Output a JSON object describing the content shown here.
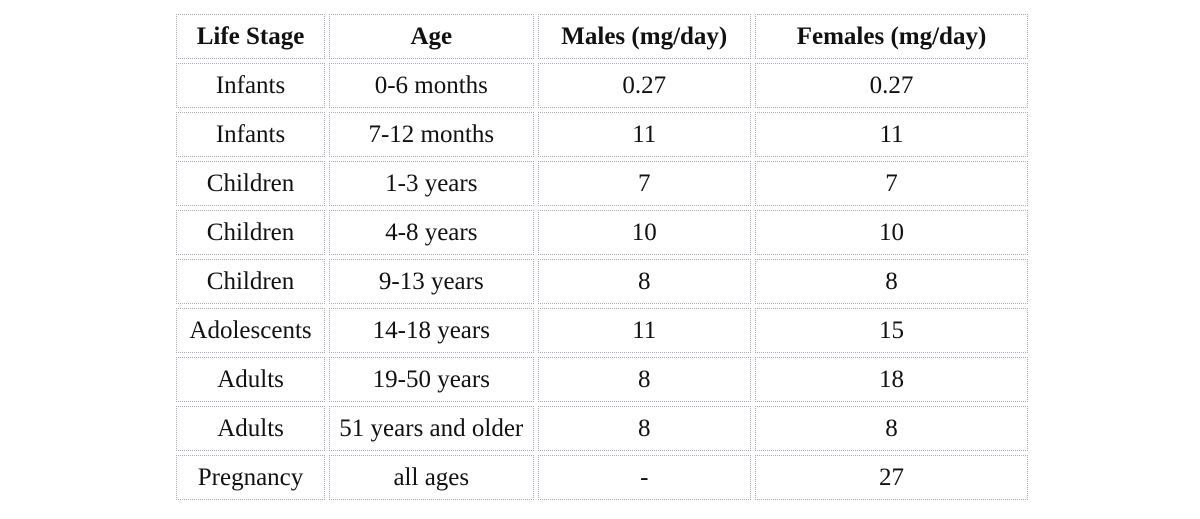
{
  "table": {
    "headers": [
      "Life Stage",
      "Age",
      "Males (mg/day)",
      "Females (mg/day)"
    ],
    "rows": [
      [
        "Infants",
        "0-6 months",
        "0.27",
        "0.27"
      ],
      [
        "Infants",
        "7-12 months",
        "11",
        "11"
      ],
      [
        "Children",
        "1-3 years",
        "7",
        "7"
      ],
      [
        "Children",
        "4-8 years",
        "10",
        "10"
      ],
      [
        "Children",
        "9-13 years",
        "8",
        "8"
      ],
      [
        "Adolescents",
        "14-18 years",
        "11",
        "15"
      ],
      [
        "Adults",
        "19-50 years",
        "8",
        "18"
      ],
      [
        "Adults",
        "51 years and older",
        "8",
        "8"
      ],
      [
        "Pregnancy",
        "all ages",
        "-",
        "27"
      ]
    ]
  }
}
